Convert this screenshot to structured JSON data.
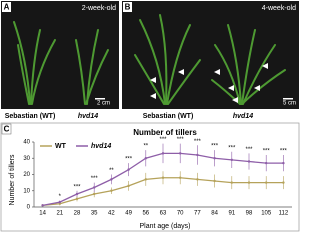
{
  "panels": [
    {
      "letter": "A",
      "age": "2-week-old",
      "left_label": "Sebastian (WT)",
      "right_label": "hvd14",
      "scale": "2 cm"
    },
    {
      "letter": "B",
      "age": "4-week-old",
      "left_label": "Sebastian (WT)",
      "right_label": "hvd14",
      "scale": "5 cm"
    }
  ],
  "chart_data": {
    "type": "line",
    "letter": "C",
    "title": "Number of tillers",
    "y_label": "Number of tillers",
    "x_label": "Plant age (days)",
    "categories": [
      "14",
      "21",
      "28",
      "35",
      "42",
      "49",
      "56",
      "63",
      "70",
      "77",
      "84",
      "91",
      "98",
      "105",
      "112"
    ],
    "series": [
      {
        "name": "WT",
        "color": "#b5a25a",
        "values": [
          1,
          2,
          5,
          8,
          10,
          13,
          17,
          18,
          18,
          17,
          16,
          15,
          15,
          15,
          15
        ],
        "errors": [
          0.5,
          1,
          1.5,
          2,
          2,
          3,
          4,
          4,
          4,
          4,
          4,
          4,
          4,
          4,
          4
        ]
      },
      {
        "name": "hvd14",
        "color": "#8e5ea8",
        "values": [
          1,
          3,
          8,
          12,
          17,
          23,
          30,
          33,
          33,
          32,
          30,
          29,
          28,
          27,
          27
        ],
        "errors": [
          0.5,
          1,
          2,
          3,
          3,
          4,
          5,
          6,
          6,
          6,
          5,
          5,
          5,
          5,
          5
        ]
      }
    ],
    "annotations": [
      null,
      "*",
      "***",
      "***",
      "**",
      "***",
      "**",
      "***",
      "***",
      "***",
      "***",
      "***",
      "***",
      "***",
      "***"
    ],
    "ylim": [
      0,
      40
    ],
    "yticks": [
      0,
      10,
      20,
      30,
      40
    ]
  }
}
